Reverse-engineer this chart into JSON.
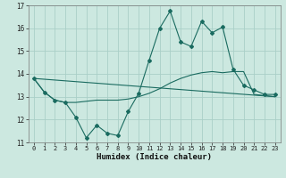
{
  "title": "",
  "xlabel": "Humidex (Indice chaleur)",
  "bg_color": "#cce8e0",
  "line_color": "#1a6b60",
  "grid_color": "#aacfc8",
  "xlim": [
    -0.5,
    23.5
  ],
  "ylim": [
    11,
    17
  ],
  "yticks": [
    11,
    12,
    13,
    14,
    15,
    16,
    17
  ],
  "xticks": [
    0,
    1,
    2,
    3,
    4,
    5,
    6,
    7,
    8,
    9,
    10,
    11,
    12,
    13,
    14,
    15,
    16,
    17,
    18,
    19,
    20,
    21,
    22,
    23
  ],
  "line1_x": [
    0,
    1,
    2,
    3,
    4,
    5,
    6,
    7,
    8,
    9,
    10,
    11,
    12,
    13,
    14,
    15,
    16,
    17,
    18,
    19,
    20,
    21,
    22,
    23
  ],
  "line1_y": [
    13.8,
    13.2,
    12.85,
    12.75,
    12.1,
    11.2,
    11.75,
    11.4,
    11.3,
    12.35,
    13.15,
    14.6,
    16.0,
    16.75,
    15.4,
    15.2,
    16.3,
    15.8,
    16.05,
    14.2,
    13.5,
    13.3,
    13.1,
    13.1
  ],
  "line2_x": [
    0,
    1,
    2,
    3,
    4,
    5,
    6,
    7,
    8,
    9,
    10,
    11,
    12,
    13,
    14,
    15,
    16,
    17,
    18,
    19,
    20,
    21,
    22,
    23
  ],
  "line2_y": [
    13.8,
    13.2,
    12.85,
    12.75,
    12.75,
    12.8,
    12.85,
    12.85,
    12.85,
    12.9,
    13.0,
    13.15,
    13.35,
    13.6,
    13.8,
    13.95,
    14.05,
    14.1,
    14.05,
    14.1,
    14.1,
    13.1,
    13.05,
    13.0
  ],
  "line3_x": [
    0,
    23
  ],
  "line3_y": [
    13.8,
    13.0
  ]
}
